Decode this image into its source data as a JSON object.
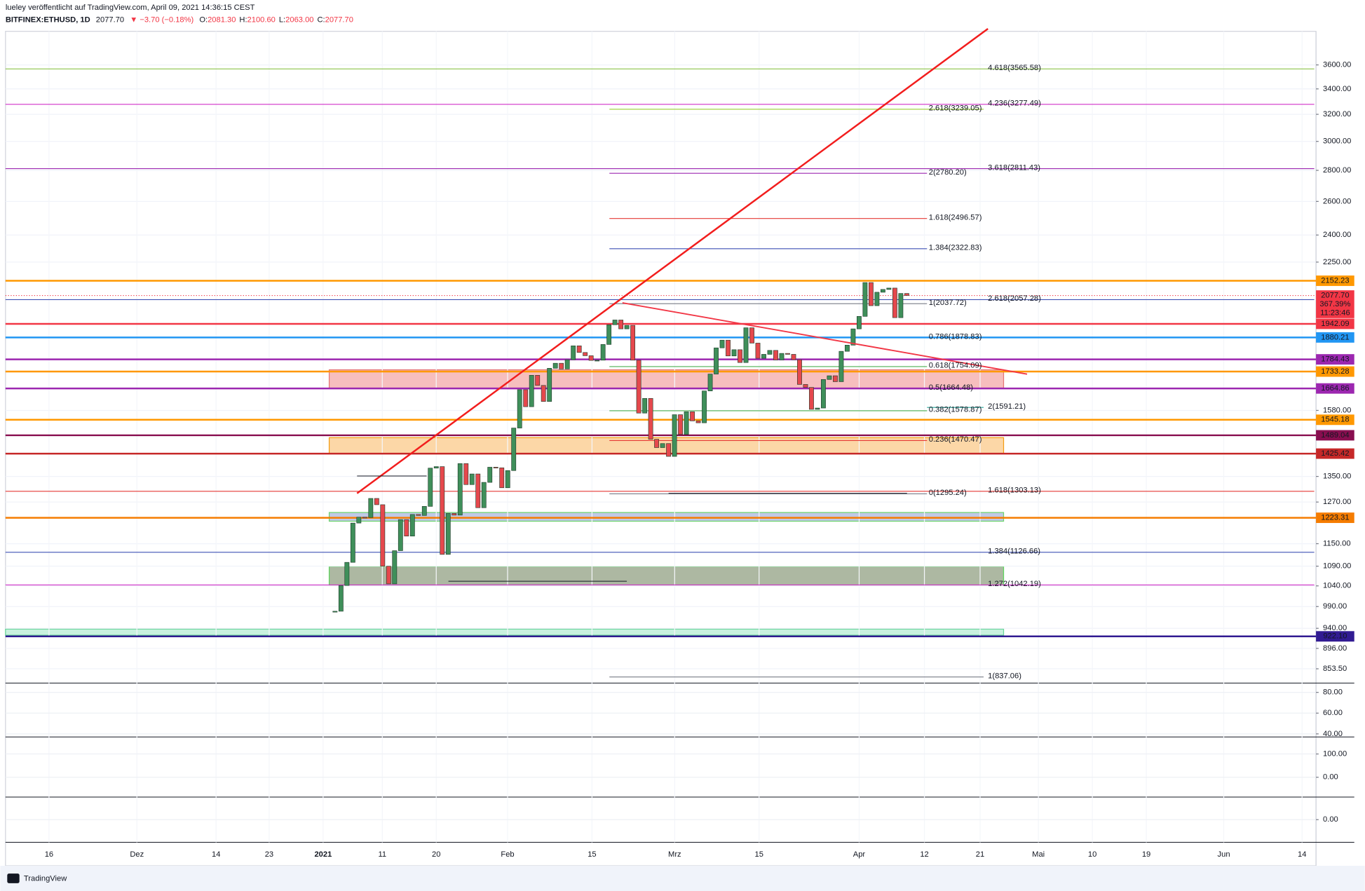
{
  "header": {
    "author_line": "lueley veröffentlicht auf TradingView.com, April 09, 2021 14:36:15 CEST",
    "symbol": "BITFINEX:ETHUSD, 1D",
    "last": "2077.70",
    "change": "▼ −3.70 (−0.18%)",
    "ohlc": [
      {
        "key": "O:",
        "value": "2081.30"
      },
      {
        "key": "H:",
        "value": "2100.60"
      },
      {
        "key": "L:",
        "value": "2063.00"
      },
      {
        "key": "C:",
        "value": "2077.70"
      }
    ]
  },
  "footer": {
    "brand": "TradingView"
  },
  "chart_data": [
    {
      "type": "candlestick",
      "title": "BITFINEX:ETHUSD, 1D",
      "log_scale": true,
      "grid": true,
      "up_color": "#3f8f5a",
      "down_color": "#e5484d",
      "values": [
        979,
        1041,
        1100,
        1208,
        1225,
        1224,
        1281,
        1262,
        1090,
        1045,
        1131,
        1218,
        1171,
        1233,
        1230,
        1257,
        1377,
        1382,
        1121,
        1236,
        1231,
        1392,
        1324,
        1358,
        1253,
        1331,
        1380,
        1378,
        1314,
        1369,
        1515,
        1660,
        1594,
        1718,
        1677,
        1614,
        1747,
        1768,
        1744,
        1783,
        1843,
        1814,
        1800,
        1780,
        1781,
        1849,
        1938,
        1960,
        1919,
        1935,
        1781,
        1570,
        1626,
        1475,
        1446,
        1460,
        1416,
        1564,
        1492,
        1575,
        1541,
        1534,
        1655,
        1723,
        1834,
        1868,
        1799,
        1826,
        1771,
        1924,
        1855,
        1789,
        1806,
        1823,
        1782,
        1810,
        1806,
        1783,
        1681,
        1669,
        1584,
        1589,
        1701,
        1716,
        1692,
        1819,
        1846,
        1919,
        1977,
        2143,
        2028,
        2094,
        2108,
        2115,
        1971,
        2088,
        2078
      ],
      "ylim": [
        825,
        3900
      ],
      "yticks": [
        {
          "value": 3600,
          "label": "3600.00"
        },
        {
          "value": 3400,
          "label": "3400.00"
        },
        {
          "value": 3200,
          "label": "3200.00"
        },
        {
          "value": 3000,
          "label": "3000.00"
        },
        {
          "value": 2800,
          "label": "2800.00"
        },
        {
          "value": 2600,
          "label": "2600.00"
        },
        {
          "value": 2400,
          "label": "2400.00"
        },
        {
          "value": 2250,
          "label": "2250.00"
        },
        {
          "value": 1580,
          "label": "1580.00"
        },
        {
          "value": 1350,
          "label": "1350.00"
        },
        {
          "value": 1270,
          "label": "1270.00"
        },
        {
          "value": 1150,
          "label": "1150.00"
        },
        {
          "value": 1090,
          "label": "1090.00"
        },
        {
          "value": 1040,
          "label": "1040.00"
        },
        {
          "value": 990,
          "label": "990.00"
        },
        {
          "value": 940,
          "label": "940.00"
        },
        {
          "value": 896,
          "label": "896.00"
        },
        {
          "value": 853.5,
          "label": "853.50"
        }
      ],
      "xticks": [
        "16",
        "Dez",
        "14",
        "23",
        "2021",
        "11",
        "20",
        "Feb",
        "15",
        "Mrz",
        "15",
        "Apr",
        "12",
        "21",
        "Mai",
        "10",
        "19",
        "Jun",
        "14"
      ],
      "levels": [
        {
          "value": 2152.23,
          "label": "2152.23",
          "color": "#ff9800"
        },
        {
          "value": 1942.09,
          "label": "1942.09",
          "color": "#f23645"
        },
        {
          "value": 1880.21,
          "label": "1880.21",
          "color": "#2196f3"
        },
        {
          "value": 1784.43,
          "label": "1784.43",
          "color": "#9c27b0"
        },
        {
          "value": 1733.28,
          "label": "1733.28",
          "color": "#ff9800"
        },
        {
          "value": 1664.86,
          "label": "1664.86",
          "color": "#9c27b0"
        },
        {
          "value": 1545.18,
          "label": "1545.18",
          "color": "#ff9800"
        },
        {
          "value": 1489.04,
          "label": "1489.04",
          "color": "#880e4f"
        },
        {
          "value": 1425.42,
          "label": "1425.42",
          "color": "#c62828"
        },
        {
          "value": 1223.31,
          "label": "1223.31",
          "color": "#f57c00"
        },
        {
          "value": 922.1,
          "label": "922.10",
          "color": "#311b92"
        }
      ],
      "price_tag": {
        "value": 2077.7,
        "label": "2077.70",
        "change": "367.39%",
        "countdown": "11:23:46",
        "color": "#f23645"
      },
      "fib_labels": [
        {
          "label": "4.618(3565.58)",
          "value": 3565.58,
          "color": "#8bc34a"
        },
        {
          "label": "4.236(3277.49)",
          "value": 3277.49,
          "color": "#d030c8"
        },
        {
          "label": "2.618(3239.05)",
          "value": 3239.05,
          "color": "#9acd32"
        },
        {
          "label": "3.618(2811.43)",
          "value": 2811.43,
          "color": "#9c27b0"
        },
        {
          "label": "2(2780.20)",
          "value": 2780.2,
          "color": "#9c27b0"
        },
        {
          "label": "1.618(2496.57)",
          "value": 2496.57,
          "color": "#e53935"
        },
        {
          "label": "1.384(2322.83)",
          "value": 2322.83,
          "color": "#3f51b5"
        },
        {
          "label": "2.618(2057.28)",
          "value": 2057.28,
          "color": "#3f51b5"
        },
        {
          "label": "1(2037.72)",
          "value": 2037.72,
          "color": "#787b86"
        },
        {
          "label": "0.786(1878.83)",
          "value": 1878.83,
          "color": "#2196f3"
        },
        {
          "label": "0.618(1754.09)",
          "value": 1754.09,
          "color": "#4caf50"
        },
        {
          "label": "0.5(1664.48)",
          "value": 1664.48,
          "color": "#4caf50"
        },
        {
          "label": "0.382(1578.87)",
          "value": 1578.87,
          "color": "#4caf50"
        },
        {
          "label": "2(1591.21)",
          "value": 1591.21,
          "color": "#26a69a"
        },
        {
          "label": "0.236(1470.47)",
          "value": 1470.47,
          "color": "#e53935"
        },
        {
          "label": "0(1295.24)",
          "value": 1295.24,
          "color": "#787b86"
        },
        {
          "label": "1.618(1303.13)",
          "value": 1303.13,
          "color": "#e53935"
        },
        {
          "label": "1.384(1126.66)",
          "value": 1126.66,
          "color": "#3f51b5"
        },
        {
          "label": "1.272(1042.19)",
          "value": 1042.19,
          "color": "#d030c8"
        },
        {
          "label": "1(837.06)",
          "value": 837.06,
          "color": "#787b86"
        }
      ]
    },
    {
      "type": "indicator",
      "ylim": [
        37,
        89
      ],
      "yticks": [
        {
          "value": 80,
          "label": "80.00"
        },
        {
          "value": 60,
          "label": "60.00"
        },
        {
          "value": 40,
          "label": "40.00"
        }
      ]
    },
    {
      "type": "indicator",
      "ylim": [
        -85,
        173
      ],
      "yticks": [
        {
          "value": 100,
          "label": "100.00"
        },
        {
          "value": 0,
          "label": "0.00"
        }
      ]
    },
    {
      "type": "indicator",
      "ylim": [
        -90,
        90
      ],
      "yticks": [
        {
          "value": 0,
          "label": "0.00"
        }
      ]
    }
  ]
}
